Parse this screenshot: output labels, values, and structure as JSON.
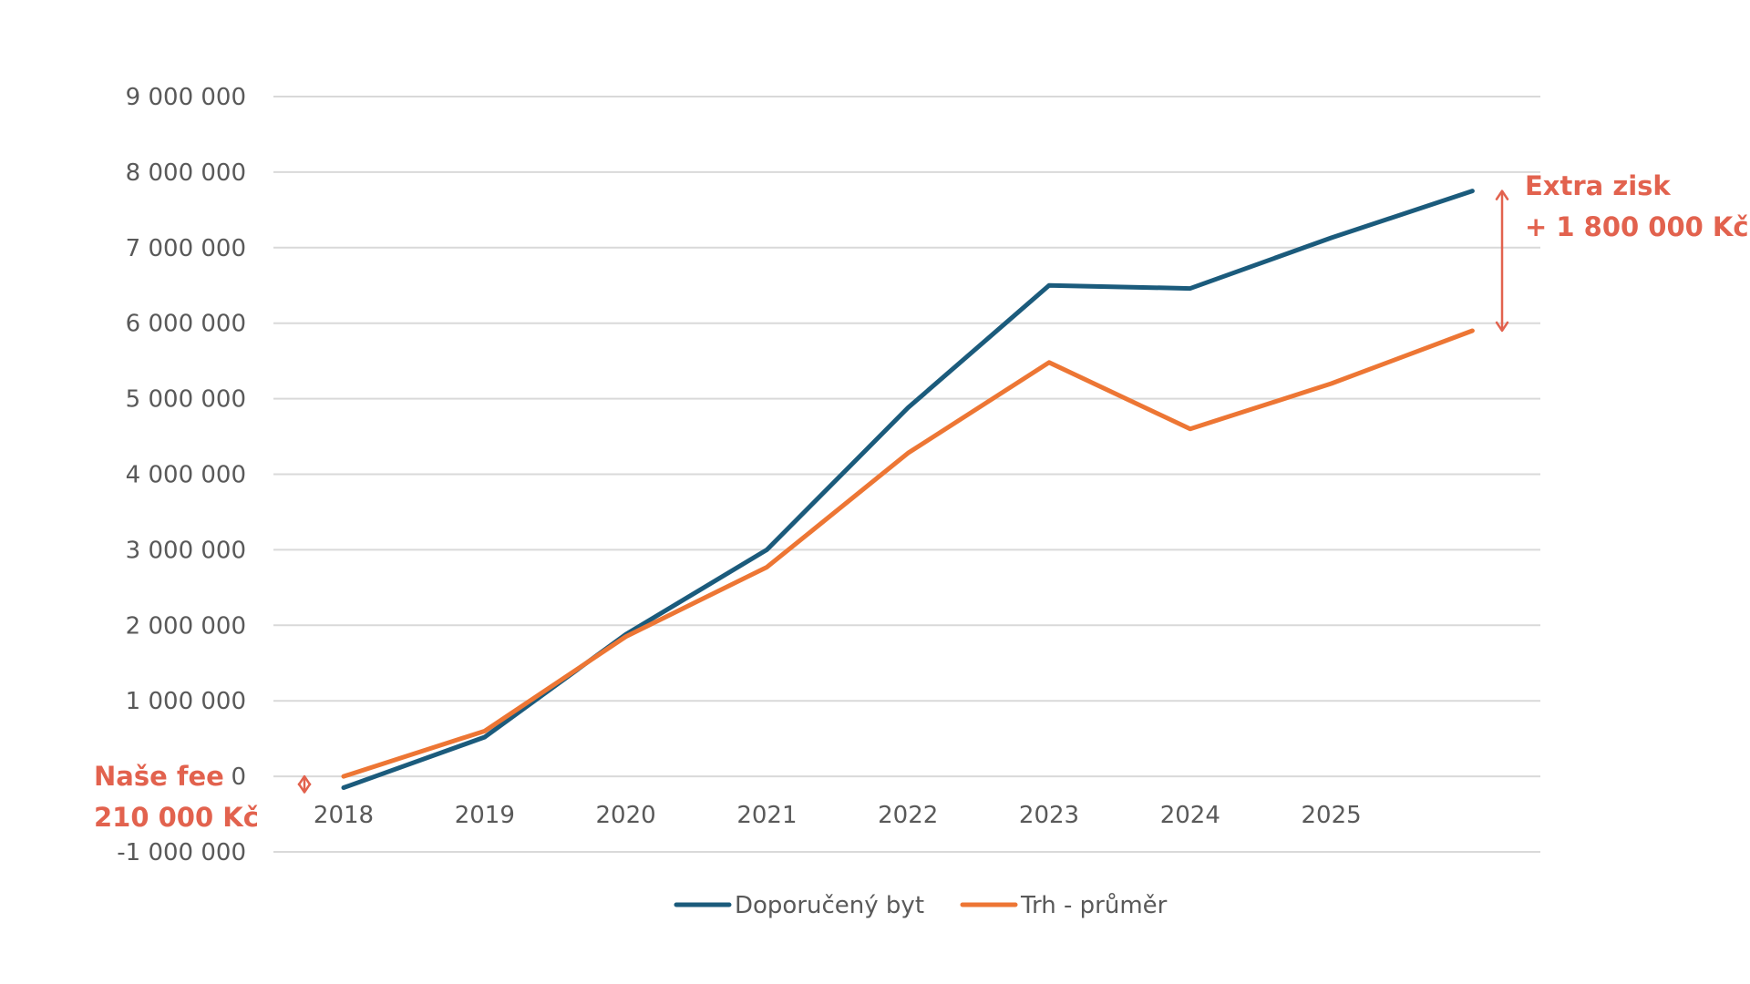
{
  "chart_data": {
    "type": "line",
    "x": [
      "2018",
      "2019",
      "2020",
      "2021",
      "2022",
      "2023",
      "2024",
      "2025",
      ""
    ],
    "series": [
      {
        "name": "Doporučený byt",
        "color": "#1b5b7c",
        "values": [
          -150000,
          520000,
          1880000,
          3000000,
          4880000,
          6500000,
          6460000,
          7130000,
          7750000
        ]
      },
      {
        "name": "Trh - průměr",
        "color": "#ed7634",
        "values": [
          0,
          600000,
          1850000,
          2770000,
          4280000,
          5480000,
          4600000,
          5200000,
          5900000
        ]
      }
    ],
    "yticks": [
      {
        "value": -1000000,
        "label": "-1 000 000"
      },
      {
        "value": 0,
        "label": "0"
      },
      {
        "value": 1000000,
        "label": "1 000 000"
      },
      {
        "value": 2000000,
        "label": "2 000 000"
      },
      {
        "value": 3000000,
        "label": "3 000 000"
      },
      {
        "value": 4000000,
        "label": "4 000 000"
      },
      {
        "value": 5000000,
        "label": "5 000 000"
      },
      {
        "value": 6000000,
        "label": "6 000 000"
      },
      {
        "value": 7000000,
        "label": "7 000 000"
      },
      {
        "value": 8000000,
        "label": "8 000 000"
      },
      {
        "value": 9000000,
        "label": "9 000 000"
      }
    ],
    "ylim": [
      -1000000,
      9000000
    ],
    "title": "",
    "xlabel": "",
    "ylabel": "",
    "grid": true,
    "legend_position": "bottom-center",
    "annotations": [
      {
        "name": "extra-profit",
        "lines": [
          "Extra zisk",
          "+ 1 800 000 Kč"
        ],
        "color": "#e2624e",
        "arrow_from": 7750000,
        "arrow_to": 5900000
      },
      {
        "name": "our-fee",
        "lines": [
          "Naše fee",
          "210 000 Kč"
        ],
        "color": "#e2624e",
        "arrow_from": 0,
        "arrow_to": -210000
      }
    ]
  }
}
